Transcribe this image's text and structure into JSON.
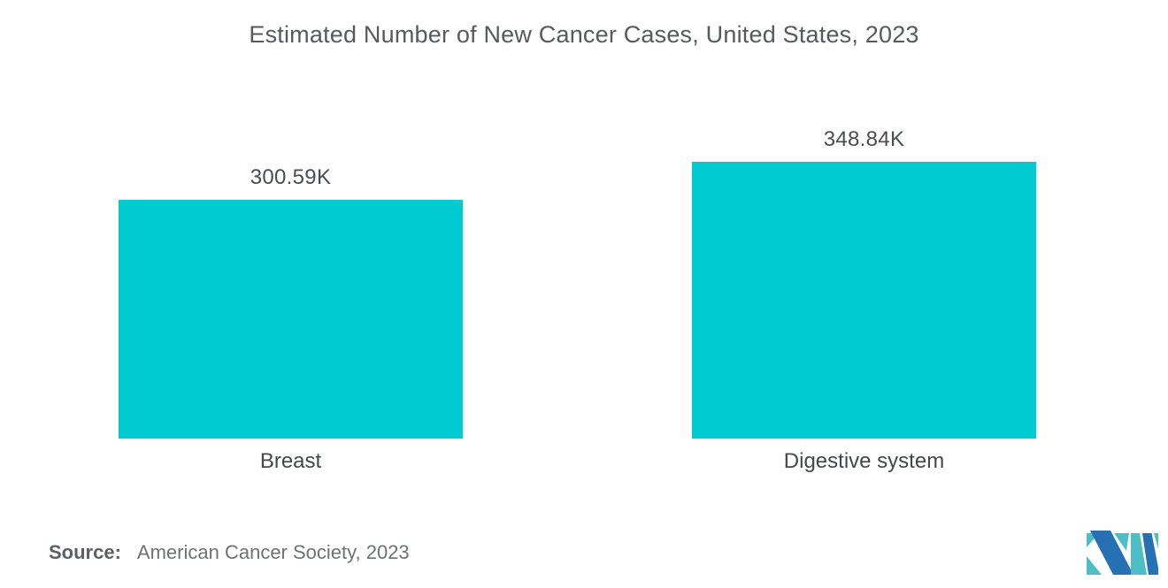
{
  "chart_data": {
    "type": "bar",
    "title": "Estimated Number of New Cancer Cases, United States, 2023",
    "categories": [
      "Breast",
      "Digestive system"
    ],
    "values": [
      300590,
      348840
    ],
    "value_labels": [
      "300.59K",
      "348.84K"
    ],
    "xlabel": "",
    "ylabel": "",
    "ylim": [
      0,
      360000
    ],
    "grid": false,
    "legend": "none",
    "bar_color": "#00cbd2"
  },
  "source": {
    "label": "Source:",
    "text": "American Cancer Society, 2023"
  },
  "logo": {
    "name": "mordor-intelligence-logo",
    "teal": "#4ebec6",
    "blue": "#2571b4"
  },
  "colors": {
    "title": "#58595b",
    "value_label": "#4b4c4e",
    "category_label": "#454749",
    "source_text": "#707173"
  }
}
